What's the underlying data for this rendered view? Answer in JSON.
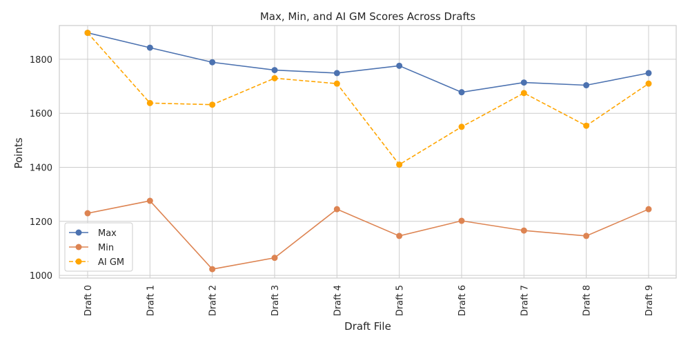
{
  "chart_data": {
    "type": "line",
    "title": "Max, Min, and AI GM Scores Across Drafts",
    "xlabel": "Draft File",
    "ylabel": "Points",
    "categories": [
      "Draft 0",
      "Draft 1",
      "Draft 2",
      "Draft 3",
      "Draft 4",
      "Draft 5",
      "Draft 6",
      "Draft 7",
      "Draft 8",
      "Draft 9"
    ],
    "ylim": [
      990,
      1925
    ],
    "yticks": [
      1000,
      1200,
      1400,
      1600,
      1800
    ],
    "grid": true,
    "legend_position": "bottom-left",
    "series": [
      {
        "name": "Max",
        "color": "#4c72b0",
        "dash": "solid",
        "values": [
          1898,
          1843,
          1789,
          1760,
          1749,
          1776,
          1678,
          1714,
          1704,
          1749
        ]
      },
      {
        "name": "Min",
        "color": "#dd8452",
        "dash": "solid",
        "values": [
          1230,
          1276,
          1023,
          1065,
          1245,
          1146,
          1202,
          1166,
          1146,
          1245
        ]
      },
      {
        "name": "AI GM",
        "color": "#ffa500",
        "dash": "dashed",
        "values": [
          1898,
          1638,
          1632,
          1730,
          1710,
          1410,
          1550,
          1675,
          1554,
          1710
        ]
      }
    ]
  }
}
